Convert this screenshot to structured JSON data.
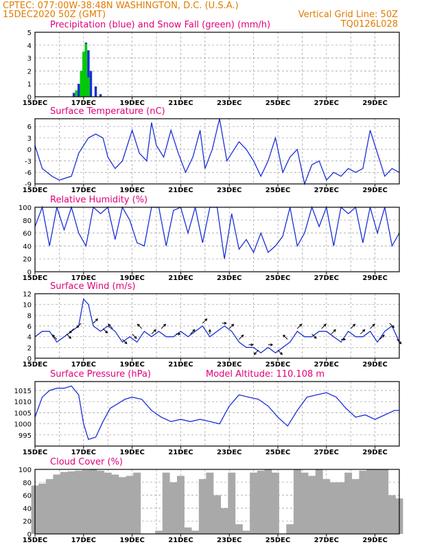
{
  "header": {
    "left_line1": "CPTEC:   077:00W-38:48N   WASHINGTON, D.C. (U.S.A.)",
    "left_line2": "15DEC2020 50Z (GMT)",
    "right_line2": "Vertical Grid Line: 50Z",
    "right_line3": "TQ0126L028"
  },
  "colors": {
    "header": "#e07b00",
    "title": "#e0007a",
    "line": "#1a2fd6",
    "snow": "#00cc00",
    "rain": "#1a2fd6",
    "cloud": "#a9a9a9"
  },
  "chart_data": [
    {
      "id": "precip",
      "type": "bar",
      "title": "Precipitation (blue) and Snow Fall (green) (mm/h)",
      "x_tick_labels": [
        "15DEC",
        "17DEC",
        "19DEC",
        "21DEC",
        "23DEC",
        "25DEC",
        "27DEC",
        "29DEC"
      ],
      "ylim": [
        0,
        5
      ],
      "y_ticks": [
        0,
        1,
        2,
        3,
        4,
        5
      ],
      "series": [
        {
          "name": "Precipitation",
          "x": [
            16.6,
            16.8,
            17.0,
            17.1,
            17.2,
            17.3,
            17.5,
            17.7
          ],
          "values": [
            0.3,
            1.0,
            3.0,
            4.2,
            3.6,
            2.0,
            0.8,
            0.2
          ]
        },
        {
          "name": "Snow Fall",
          "x": [
            16.7,
            16.9,
            17.0,
            17.1,
            17.2
          ],
          "values": [
            0.5,
            2.0,
            3.5,
            4.1,
            1.5
          ]
        }
      ]
    },
    {
      "id": "temp",
      "type": "line",
      "title": "Surface Temperature (nC)",
      "x_tick_labels": [
        "15DEC",
        "17DEC",
        "19DEC",
        "21DEC",
        "23DEC",
        "25DEC",
        "27DEC",
        "29DEC"
      ],
      "ylim": [
        -9,
        8
      ],
      "y_ticks": [
        -9,
        -6,
        -3,
        0,
        3,
        6
      ],
      "series": [
        {
          "x": [
            15.0,
            15.3,
            15.7,
            16.0,
            16.5,
            16.8,
            17.2,
            17.5,
            17.8,
            18.0,
            18.3,
            18.6,
            19.0,
            19.3,
            19.6,
            19.8,
            20.0,
            20.3,
            20.6,
            20.9,
            21.2,
            21.5,
            21.8,
            22.0,
            22.3,
            22.6,
            22.9,
            23.1,
            23.4,
            23.7,
            24.0,
            24.3,
            24.6,
            24.9,
            25.2,
            25.5,
            25.8,
            26.1,
            26.4,
            26.7,
            27.0,
            27.3,
            27.6,
            27.9,
            28.2,
            28.5,
            28.8,
            29.1,
            29.4,
            29.7,
            30.0
          ],
          "values": [
            1,
            -5,
            -7,
            -8,
            -7,
            -1,
            3,
            4,
            3,
            -2,
            -5,
            -3,
            5,
            -1,
            -3,
            7,
            1,
            -2,
            5,
            -1,
            -6,
            -2,
            5,
            -5,
            0,
            8,
            -3,
            -1,
            2,
            0,
            -3,
            -7,
            -3,
            3,
            -6,
            -2,
            0,
            -9,
            -4,
            -3,
            -8,
            -6,
            -7,
            -5,
            -6,
            -5,
            5,
            -1,
            -7,
            -5,
            -6
          ]
        }
      ]
    },
    {
      "id": "rh",
      "type": "line",
      "title": "Relative Humidity (%)",
      "x_tick_labels": [
        "15DEC",
        "17DEC",
        "19DEC",
        "21DEC",
        "23DEC",
        "25DEC",
        "27DEC",
        "29DEC"
      ],
      "ylim": [
        0,
        100
      ],
      "y_ticks": [
        0,
        20,
        40,
        60,
        80,
        100
      ],
      "series": [
        {
          "x": [
            15.0,
            15.3,
            15.6,
            15.9,
            16.2,
            16.5,
            16.8,
            17.1,
            17.4,
            17.7,
            18.0,
            18.3,
            18.6,
            18.9,
            19.2,
            19.5,
            19.8,
            20.1,
            20.4,
            20.7,
            21.0,
            21.3,
            21.6,
            21.9,
            22.2,
            22.5,
            22.8,
            23.1,
            23.4,
            23.7,
            24.0,
            24.3,
            24.6,
            24.9,
            25.2,
            25.5,
            25.8,
            26.1,
            26.4,
            26.7,
            27.0,
            27.3,
            27.6,
            27.9,
            28.2,
            28.5,
            28.8,
            29.1,
            29.4,
            29.7,
            30.0
          ],
          "values": [
            70,
            100,
            40,
            100,
            65,
            100,
            60,
            40,
            100,
            90,
            100,
            50,
            100,
            80,
            45,
            40,
            100,
            100,
            40,
            95,
            100,
            60,
            100,
            45,
            100,
            100,
            20,
            90,
            35,
            50,
            30,
            60,
            30,
            40,
            55,
            100,
            40,
            60,
            100,
            70,
            100,
            40,
            100,
            90,
            100,
            45,
            100,
            60,
            100,
            40,
            60
          ]
        }
      ]
    },
    {
      "id": "wind",
      "type": "line",
      "title": "Surface Wind (m/s)",
      "x_tick_labels": [
        "15DEC",
        "17DEC",
        "19DEC",
        "21DEC",
        "23DEC",
        "25DEC",
        "27DEC",
        "29DEC"
      ],
      "ylim": [
        0,
        12
      ],
      "y_ticks": [
        0,
        2,
        4,
        6,
        8,
        10,
        12
      ],
      "series": [
        {
          "x": [
            15.0,
            15.3,
            15.6,
            15.9,
            16.2,
            16.5,
            16.8,
            17.0,
            17.2,
            17.4,
            17.7,
            18.0,
            18.3,
            18.6,
            18.9,
            19.2,
            19.5,
            19.8,
            20.1,
            20.4,
            20.7,
            21.0,
            21.3,
            21.6,
            21.9,
            22.2,
            22.5,
            22.8,
            23.1,
            23.4,
            23.7,
            24.0,
            24.3,
            24.6,
            24.9,
            25.2,
            25.5,
            25.8,
            26.1,
            26.4,
            26.7,
            27.0,
            27.3,
            27.6,
            27.9,
            28.2,
            28.5,
            28.8,
            29.1,
            29.4,
            29.7,
            30.0
          ],
          "values": [
            4,
            5,
            5,
            3,
            4,
            5,
            6,
            11,
            10,
            6,
            5,
            6,
            5,
            3,
            4,
            3,
            5,
            4,
            5,
            4,
            4,
            5,
            4,
            5,
            6,
            4,
            5,
            6,
            5,
            3,
            2,
            2,
            1,
            2,
            1,
            2,
            3,
            5,
            4,
            4,
            5,
            5,
            4,
            3,
            5,
            4,
            4,
            5,
            3,
            5,
            6,
            3
          ]
        }
      ],
      "arrows": {
        "x": [
          15.9,
          16.3,
          16.6,
          16.9,
          17.4,
          17.8,
          18.2,
          18.6,
          19.0,
          19.4,
          19.8,
          20.2,
          20.8,
          21.4,
          21.9,
          22.2,
          22.7,
          23.0,
          23.4,
          23.8,
          24.2,
          24.6,
          25.0,
          25.4,
          25.8,
          26.4,
          26.8,
          27.2,
          27.6,
          28.0,
          28.4,
          28.8,
          29.2,
          29.6,
          29.9
        ],
        "u": [
          -1,
          1,
          -1,
          -1,
          1,
          1,
          -1,
          1,
          1,
          -1,
          1,
          1,
          1,
          1,
          1,
          0,
          1,
          1,
          1,
          1,
          -1,
          1,
          1,
          -1,
          1,
          1,
          1,
          1,
          1,
          1,
          1,
          1,
          1,
          1,
          1
        ],
        "v": [
          1,
          -1,
          -1,
          -1,
          1,
          -1,
          1,
          -1,
          -1,
          1,
          1,
          1,
          0,
          1,
          1,
          1,
          0,
          1,
          1,
          0,
          -1,
          0,
          -1,
          1,
          1,
          -1,
          1,
          1,
          0,
          1,
          1,
          1,
          1,
          -1,
          -1
        ]
      }
    },
    {
      "id": "pres",
      "type": "line",
      "title": "Surface Pressure (hPa)",
      "subtitle": "Model Altitude: 110.108 m",
      "x_tick_labels": [
        "15DEC",
        "17DEC",
        "19DEC",
        "21DEC",
        "23DEC",
        "25DEC",
        "27DEC",
        "29DEC"
      ],
      "ylim": [
        990,
        1019
      ],
      "y_ticks": [
        995,
        1000,
        1005,
        1010,
        1015
      ],
      "series": [
        {
          "x": [
            15.0,
            15.3,
            15.6,
            15.9,
            16.2,
            16.5,
            16.8,
            17.0,
            17.2,
            17.5,
            17.8,
            18.1,
            18.4,
            18.7,
            19.0,
            19.4,
            19.8,
            20.2,
            20.6,
            21.0,
            21.4,
            21.8,
            22.2,
            22.6,
            23.0,
            23.4,
            23.8,
            24.2,
            24.6,
            25.0,
            25.4,
            25.8,
            26.2,
            26.6,
            27.0,
            27.4,
            27.8,
            28.2,
            28.6,
            29.0,
            29.4,
            29.8,
            30.0
          ],
          "values": [
            1003,
            1012,
            1015,
            1016,
            1016,
            1017,
            1013,
            1000,
            993,
            994,
            1001,
            1007,
            1009,
            1011,
            1012,
            1011,
            1006,
            1003,
            1001,
            1002,
            1001,
            1002,
            1001,
            1000,
            1008,
            1013,
            1012,
            1011,
            1008,
            1003,
            999,
            1006,
            1012,
            1013,
            1014,
            1012,
            1007,
            1003,
            1004,
            1002,
            1004,
            1006,
            1006
          ]
        }
      ]
    },
    {
      "id": "cloud",
      "type": "bar",
      "title": "Cloud Cover (%)",
      "x_tick_labels": [
        "15DEC",
        "17DEC",
        "19DEC",
        "21DEC",
        "23DEC",
        "25DEC",
        "27DEC",
        "29DEC"
      ],
      "ylim": [
        0,
        100
      ],
      "y_ticks": [
        0,
        20,
        40,
        60,
        80,
        100
      ],
      "series": [
        {
          "x": [
            15.0,
            15.3,
            15.6,
            15.9,
            16.2,
            16.5,
            16.8,
            17.1,
            17.4,
            17.7,
            18.0,
            18.3,
            18.6,
            18.9,
            19.2,
            19.5,
            19.8,
            20.1,
            20.4,
            20.7,
            21.0,
            21.3,
            21.6,
            21.9,
            22.2,
            22.5,
            22.8,
            23.1,
            23.4,
            23.7,
            24.0,
            24.3,
            24.6,
            24.9,
            25.2,
            25.5,
            25.8,
            26.1,
            26.4,
            26.7,
            27.0,
            27.3,
            27.6,
            27.9,
            28.2,
            28.5,
            28.8,
            29.1,
            29.4,
            29.7,
            30.0
          ],
          "values": [
            75,
            78,
            85,
            92,
            96,
            97,
            98,
            99,
            100,
            98,
            95,
            92,
            88,
            90,
            95,
            0,
            0,
            5,
            95,
            80,
            90,
            10,
            5,
            85,
            95,
            60,
            40,
            95,
            15,
            5,
            95,
            98,
            100,
            95,
            0,
            15,
            100,
            95,
            90,
            100,
            85,
            80,
            80,
            95,
            85,
            98,
            100,
            100,
            100,
            60,
            55
          ]
        }
      ]
    }
  ]
}
